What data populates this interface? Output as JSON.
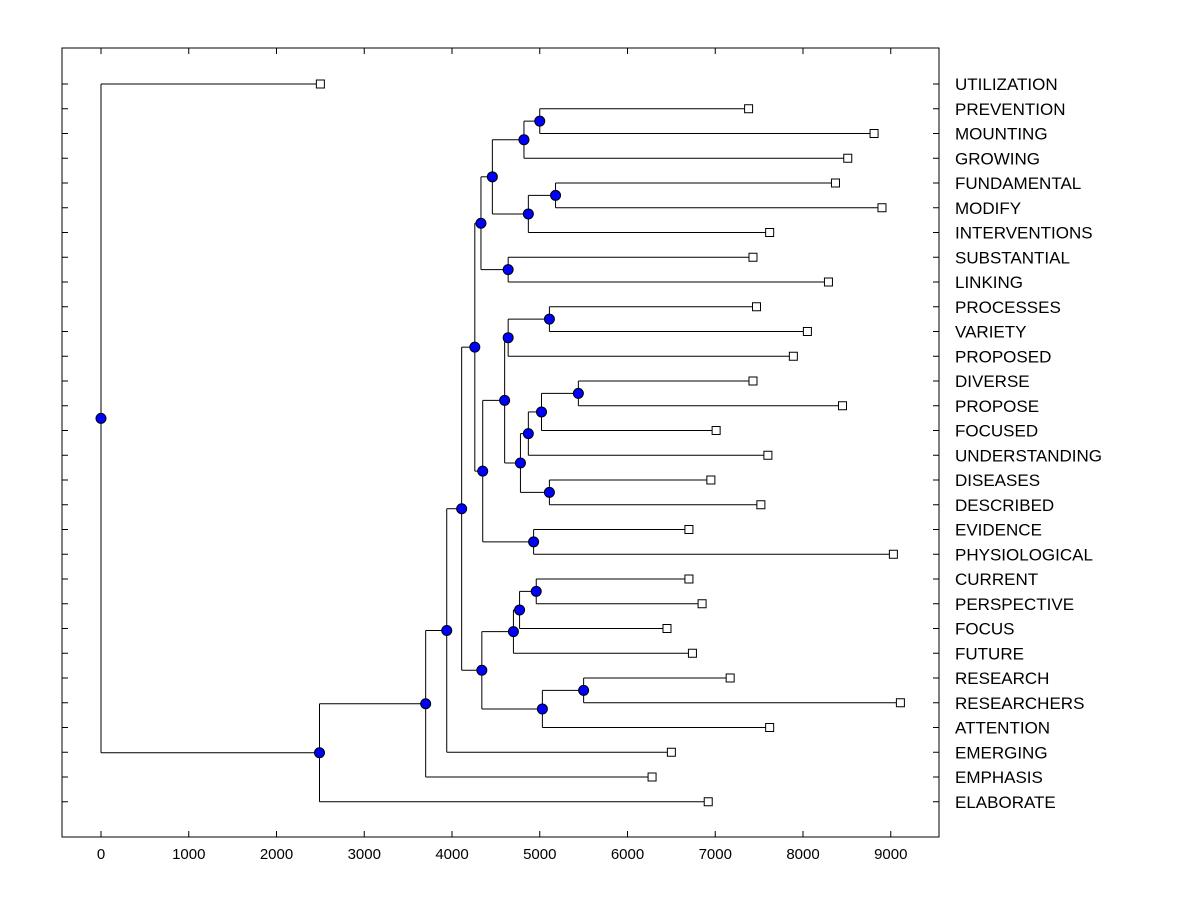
{
  "chart_data": {
    "type": "dendrogram",
    "title": "",
    "xlabel": "",
    "ylabel": "",
    "xlim": [
      -450,
      9550
    ],
    "xticks": [
      0,
      1000,
      2000,
      3000,
      4000,
      5000,
      6000,
      7000,
      8000,
      9000
    ],
    "colors": {
      "node": "#0000ff",
      "line": "#000000",
      "leaf_fill": "#ffffff"
    },
    "leaves": [
      {
        "label": "UTILIZATION",
        "value": 2500
      },
      {
        "label": "PREVENTION",
        "value": 7380
      },
      {
        "label": "MOUNTING",
        "value": 8810
      },
      {
        "label": "GROWING",
        "value": 8510
      },
      {
        "label": "FUNDAMENTAL",
        "value": 8370
      },
      {
        "label": "MODIFY",
        "value": 8900
      },
      {
        "label": "INTERVENTIONS",
        "value": 7620
      },
      {
        "label": "SUBSTANTIAL",
        "value": 7430
      },
      {
        "label": "LINKING",
        "value": 8290
      },
      {
        "label": "PROCESSES",
        "value": 7470
      },
      {
        "label": "VARIETY",
        "value": 8050
      },
      {
        "label": "PROPOSED",
        "value": 7890
      },
      {
        "label": "DIVERSE",
        "value": 7430
      },
      {
        "label": "PROPOSE",
        "value": 8450
      },
      {
        "label": "FOCUSED",
        "value": 7010
      },
      {
        "label": "UNDERSTANDING",
        "value": 7600
      },
      {
        "label": "DISEASES",
        "value": 6950
      },
      {
        "label": "DESCRIBED",
        "value": 7520
      },
      {
        "label": "EVIDENCE",
        "value": 6700
      },
      {
        "label": "PHYSIOLOGICAL",
        "value": 9030
      },
      {
        "label": "CURRENT",
        "value": 6700
      },
      {
        "label": "PERSPECTIVE",
        "value": 6850
      },
      {
        "label": "FOCUS",
        "value": 6450
      },
      {
        "label": "FUTURE",
        "value": 6740
      },
      {
        "label": "RESEARCH",
        "value": 7170
      },
      {
        "label": "RESEARCHERS",
        "value": 9110
      },
      {
        "label": "ATTENTION",
        "value": 7620
      },
      {
        "label": "EMERGING",
        "value": 6500
      },
      {
        "label": "EMPHASIS",
        "value": 6280
      },
      {
        "label": "ELABORATE",
        "value": 6920
      }
    ],
    "nodes": [
      {
        "id": "n1",
        "value": 5000,
        "children": [
          "PREVENTION",
          "MOUNTING"
        ]
      },
      {
        "id": "n2",
        "value": 4820,
        "children": [
          "n1",
          "GROWING"
        ]
      },
      {
        "id": "n3",
        "value": 5180,
        "children": [
          "FUNDAMENTAL",
          "MODIFY"
        ]
      },
      {
        "id": "n4",
        "value": 4870,
        "children": [
          "n3",
          "INTERVENTIONS"
        ]
      },
      {
        "id": "n5",
        "value": 4460,
        "children": [
          "n2",
          "n4"
        ]
      },
      {
        "id": "n6",
        "value": 4640,
        "children": [
          "SUBSTANTIAL",
          "LINKING"
        ]
      },
      {
        "id": "n7",
        "value": 4330,
        "children": [
          "n5",
          "n6"
        ]
      },
      {
        "id": "n8",
        "value": 5110,
        "children": [
          "PROCESSES",
          "VARIETY"
        ]
      },
      {
        "id": "n9",
        "value": 4640,
        "children": [
          "n8",
          "PROPOSED"
        ]
      },
      {
        "id": "n10",
        "value": 5440,
        "children": [
          "DIVERSE",
          "PROPOSE"
        ]
      },
      {
        "id": "n11",
        "value": 5020,
        "children": [
          "n10",
          "FOCUSED"
        ]
      },
      {
        "id": "n12",
        "value": 4870,
        "children": [
          "n11",
          "UNDERSTANDING"
        ]
      },
      {
        "id": "n13",
        "value": 5110,
        "children": [
          "DISEASES",
          "DESCRIBED"
        ]
      },
      {
        "id": "n14",
        "value": 4780,
        "children": [
          "n12",
          "n13"
        ]
      },
      {
        "id": "n15",
        "value": 4600,
        "children": [
          "n9",
          "n14"
        ]
      },
      {
        "id": "n16",
        "value": 4930,
        "children": [
          "EVIDENCE",
          "PHYSIOLOGICAL"
        ]
      },
      {
        "id": "n17",
        "value": 4350,
        "children": [
          "n15",
          "n16"
        ]
      },
      {
        "id": "n18",
        "value": 4260,
        "children": [
          "n7",
          "n17"
        ]
      },
      {
        "id": "n19",
        "value": 4960,
        "children": [
          "CURRENT",
          "PERSPECTIVE"
        ]
      },
      {
        "id": "n20",
        "value": 4770,
        "children": [
          "n19",
          "FOCUS"
        ]
      },
      {
        "id": "n21",
        "value": 4700,
        "children": [
          "n20",
          "FUTURE"
        ]
      },
      {
        "id": "n22",
        "value": 5500,
        "children": [
          "RESEARCH",
          "RESEARCHERS"
        ]
      },
      {
        "id": "n23",
        "value": 5030,
        "children": [
          "n22",
          "ATTENTION"
        ]
      },
      {
        "id": "n24",
        "value": 4340,
        "children": [
          "n21",
          "n23"
        ]
      },
      {
        "id": "n25",
        "value": 4110,
        "children": [
          "n18",
          "n24"
        ]
      },
      {
        "id": "n26",
        "value": 3940,
        "children": [
          "n25",
          "EMERGING"
        ]
      },
      {
        "id": "n27",
        "value": 3700,
        "children": [
          "n26",
          "EMPHASIS"
        ]
      },
      {
        "id": "n28",
        "value": 2490,
        "children": [
          "n27",
          "ELABORATE"
        ]
      },
      {
        "id": "n29",
        "value": 0,
        "children": [
          "UTILIZATION",
          "n28"
        ]
      }
    ]
  }
}
